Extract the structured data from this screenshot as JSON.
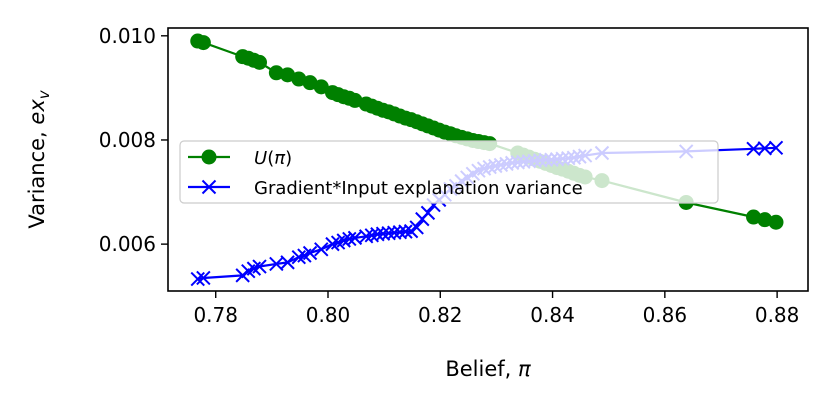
{
  "chart_data": {
    "type": "line",
    "xlabel": "Belief, π",
    "ylabel": "Variance, ex_v",
    "xlim": [
      0.7715,
      0.8855
    ],
    "ylim": [
      0.0051,
      0.01015
    ],
    "x_ticks": [
      0.78,
      0.8,
      0.82,
      0.84,
      0.86,
      0.88
    ],
    "x_tick_labels": [
      "0.78",
      "0.80",
      "0.82",
      "0.84",
      "0.86",
      "0.88"
    ],
    "y_ticks": [
      0.006,
      0.008,
      0.01
    ],
    "y_tick_labels": [
      "0.006",
      "0.008",
      "0.010"
    ],
    "grid": false,
    "legend_position": "center-left",
    "series": [
      {
        "name": "U(π)",
        "color": "#008000",
        "marker": "circle",
        "x": [
          0.7768,
          0.7778,
          0.7848,
          0.7858,
          0.7868,
          0.7878,
          0.7908,
          0.7928,
          0.7948,
          0.7968,
          0.7988,
          0.8008,
          0.8018,
          0.8028,
          0.8038,
          0.8048,
          0.8068,
          0.8078,
          0.8088,
          0.8098,
          0.8108,
          0.8118,
          0.8128,
          0.8138,
          0.8148,
          0.8158,
          0.8168,
          0.8178,
          0.8188,
          0.8198,
          0.8208,
          0.8218,
          0.8228,
          0.8238,
          0.8248,
          0.8258,
          0.8268,
          0.8278,
          0.8288,
          0.8338,
          0.8348,
          0.8358,
          0.8368,
          0.8378,
          0.8388,
          0.8398,
          0.8408,
          0.8418,
          0.8428,
          0.8438,
          0.8448,
          0.8458,
          0.8488,
          0.8638,
          0.8758,
          0.8778,
          0.8798
        ],
        "y": [
          0.0099,
          0.00987,
          0.0096,
          0.00957,
          0.00953,
          0.00949,
          0.00929,
          0.00925,
          0.00917,
          0.0091,
          0.00902,
          0.00891,
          0.00887,
          0.00883,
          0.0088,
          0.00876,
          0.00869,
          0.00865,
          0.00861,
          0.00857,
          0.00854,
          0.0085,
          0.00846,
          0.00842,
          0.00839,
          0.00835,
          0.00831,
          0.00827,
          0.00823,
          0.00819,
          0.00815,
          0.00812,
          0.00808,
          0.00805,
          0.00802,
          0.00799,
          0.00797,
          0.00795,
          0.00793,
          0.00775,
          0.00771,
          0.00767,
          0.00763,
          0.00759,
          0.00755,
          0.00751,
          0.00747,
          0.00744,
          0.0074,
          0.00736,
          0.00732,
          0.00729,
          0.00722,
          0.0068,
          0.00652,
          0.00647,
          0.00642
        ]
      },
      {
        "name": "Gradient*Input explanation variance",
        "color": "#0000ff",
        "marker": "x",
        "x": [
          0.7768,
          0.7778,
          0.7848,
          0.7858,
          0.7868,
          0.7878,
          0.7908,
          0.7928,
          0.7948,
          0.7958,
          0.7968,
          0.7988,
          0.8008,
          0.8018,
          0.8028,
          0.8038,
          0.8048,
          0.8068,
          0.8078,
          0.8088,
          0.8098,
          0.8108,
          0.8118,
          0.8128,
          0.8138,
          0.8148,
          0.8158,
          0.8168,
          0.8178,
          0.8188,
          0.8198,
          0.8208,
          0.8218,
          0.8228,
          0.8238,
          0.8248,
          0.8258,
          0.8268,
          0.8278,
          0.8288,
          0.8298,
          0.8308,
          0.8318,
          0.8328,
          0.8338,
          0.8348,
          0.8358,
          0.8368,
          0.8378,
          0.8388,
          0.8398,
          0.8408,
          0.8418,
          0.8428,
          0.8438,
          0.8448,
          0.8458,
          0.8488,
          0.8638,
          0.8758,
          0.8778,
          0.8798
        ],
        "y": [
          0.00533,
          0.00535,
          0.0054,
          0.00548,
          0.00553,
          0.00557,
          0.00562,
          0.00565,
          0.00575,
          0.00578,
          0.00583,
          0.0059,
          0.006,
          0.00603,
          0.00607,
          0.0061,
          0.00612,
          0.00615,
          0.00617,
          0.00619,
          0.0062,
          0.00621,
          0.00622,
          0.00623,
          0.00624,
          0.00625,
          0.00632,
          0.00648,
          0.0066,
          0.00675,
          0.00685,
          0.00695,
          0.00706,
          0.00712,
          0.00721,
          0.00728,
          0.00735,
          0.00741,
          0.00745,
          0.00748,
          0.0075,
          0.00752,
          0.00754,
          0.00756,
          0.00757,
          0.00758,
          0.00759,
          0.0076,
          0.00761,
          0.00762,
          0.00762,
          0.00763,
          0.00764,
          0.00765,
          0.00766,
          0.00768,
          0.0077,
          0.00775,
          0.00778,
          0.00783,
          0.00784,
          0.00785
        ]
      }
    ]
  }
}
